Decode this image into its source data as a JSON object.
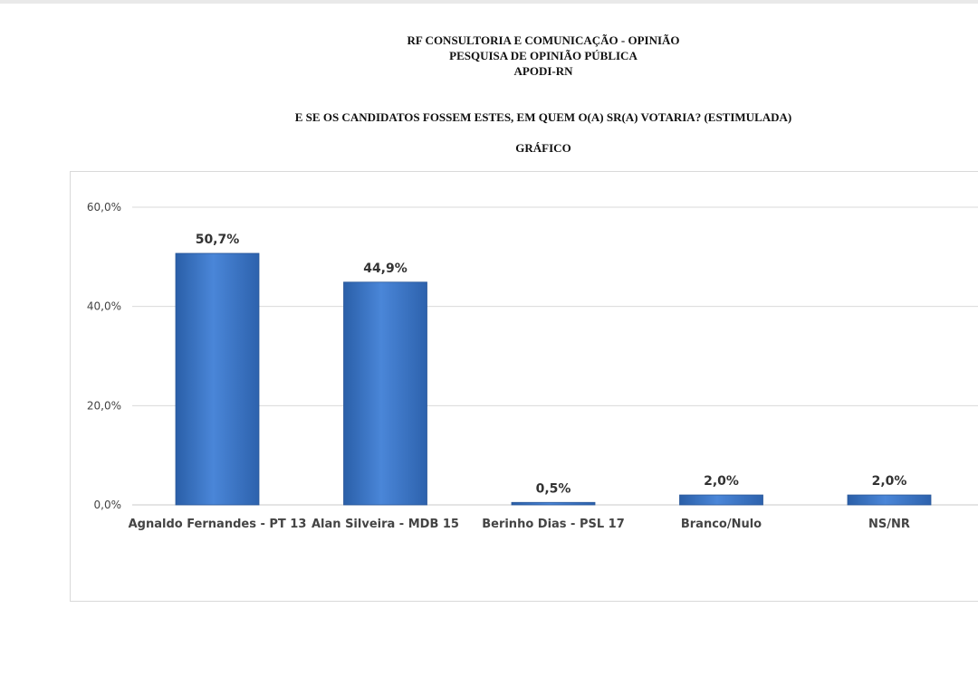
{
  "header": {
    "line1": "RF CONSULTORIA E COMUNICAÇÃO - OPINIÃO",
    "line2": "PESQUISA DE OPINIÃO PÚBLICA",
    "line3": "APODI-RN",
    "question": "E SE OS CANDIDATOS FOSSEM ESTES, EM QUEM O(A) SR(A) VOTARIA? (ESTIMULADA)",
    "section": "GRÁFICO"
  },
  "chart_data": {
    "type": "bar",
    "categories": [
      "Agnaldo Fernandes - PT 13",
      "Alan Silveira - MDB 15",
      "Berinho Dias - PSL 17",
      "Branco/Nulo",
      "NS/NR"
    ],
    "values": [
      50.7,
      44.9,
      0.5,
      2.0,
      2.0
    ],
    "data_labels": [
      "50,7%",
      "44,9%",
      "0,5%",
      "2,0%",
      "2,0%"
    ],
    "ylim": [
      0,
      60
    ],
    "yticks": [
      0,
      20,
      40,
      60
    ],
    "ytick_labels": [
      "0,0%",
      "20,0%",
      "40,0%",
      "60,0%"
    ],
    "grid": true,
    "bar_color": "#3a74c6",
    "title": "",
    "xlabel": "",
    "ylabel": ""
  }
}
